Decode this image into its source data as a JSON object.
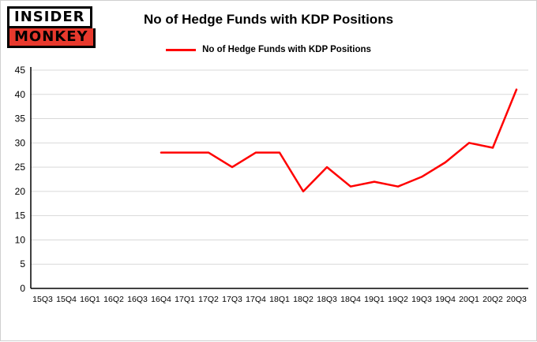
{
  "logo": {
    "line1": "INSIDER",
    "line2": "MONKEY",
    "accent_color": "#e8392d"
  },
  "header": {
    "title": "No of Hedge Funds with KDP Positions"
  },
  "legend": {
    "label": "No of Hedge Funds with KDP Positions",
    "color": "#ff0000"
  },
  "chart_data": {
    "type": "line",
    "title": "No of Hedge Funds with KDP Positions",
    "xlabel": "",
    "ylabel": "",
    "categories": [
      "15Q3",
      "15Q4",
      "16Q1",
      "16Q2",
      "16Q3",
      "16Q4",
      "17Q1",
      "17Q2",
      "17Q3",
      "17Q4",
      "18Q1",
      "18Q2",
      "18Q3",
      "18Q4",
      "19Q1",
      "19Q2",
      "19Q3",
      "19Q4",
      "20Q1",
      "20Q2",
      "20Q3"
    ],
    "series": [
      {
        "name": "No of Hedge Funds with KDP Positions",
        "color": "#ff0000",
        "values": [
          null,
          null,
          null,
          null,
          null,
          28,
          28,
          28,
          25,
          28,
          28,
          20,
          25,
          21,
          22,
          21,
          23,
          26,
          30,
          29,
          41
        ]
      }
    ],
    "ylim": [
      0,
      45
    ],
    "ytick_step": 5,
    "grid": true,
    "gridline_color": "#d9d9d9",
    "axis_color": "#000000",
    "legend_position": "top"
  }
}
